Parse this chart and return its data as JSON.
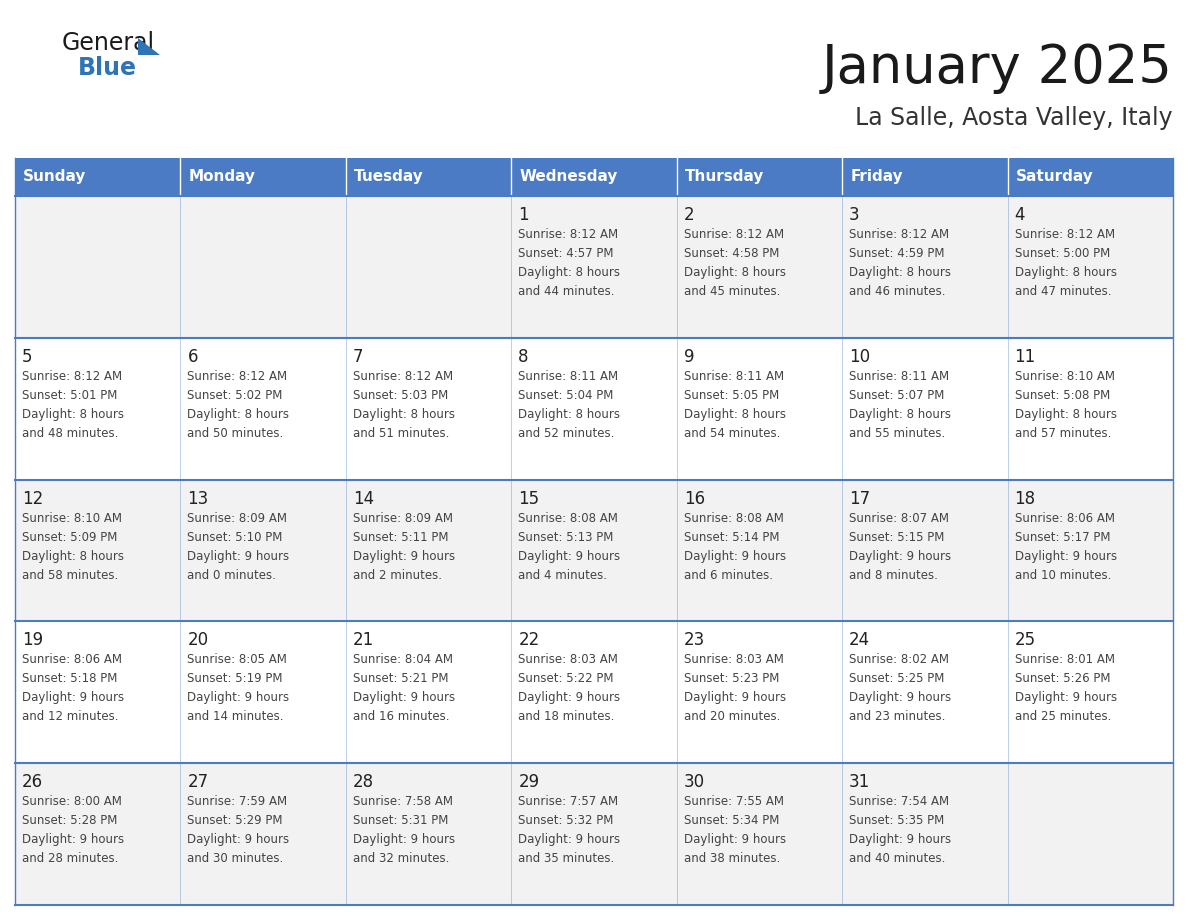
{
  "title": "January 2025",
  "subtitle": "La Salle, Aosta Valley, Italy",
  "header_bg": "#4A7BC4",
  "header_text_color": "#FFFFFF",
  "day_names": [
    "Sunday",
    "Monday",
    "Tuesday",
    "Wednesday",
    "Thursday",
    "Friday",
    "Saturday"
  ],
  "cell_bg_row0": "#F2F2F2",
  "cell_bg_row1": "#FFFFFF",
  "cell_border_color": "#4A7BC4",
  "cell_border_light": "#C8D8F0",
  "title_color": "#1a1a1a",
  "subtitle_color": "#333333",
  "text_color": "#444444",
  "daynum_color": "#222222",
  "logo_general_color": "#1a1a1a",
  "logo_blue_color": "#2E75B6",
  "days_data": [
    {
      "day": 1,
      "col": 3,
      "row": 0,
      "sunrise": "8:12 AM",
      "sunset": "4:57 PM",
      "daylight": "8 hours and 44 minutes"
    },
    {
      "day": 2,
      "col": 4,
      "row": 0,
      "sunrise": "8:12 AM",
      "sunset": "4:58 PM",
      "daylight": "8 hours and 45 minutes"
    },
    {
      "day": 3,
      "col": 5,
      "row": 0,
      "sunrise": "8:12 AM",
      "sunset": "4:59 PM",
      "daylight": "8 hours and 46 minutes"
    },
    {
      "day": 4,
      "col": 6,
      "row": 0,
      "sunrise": "8:12 AM",
      "sunset": "5:00 PM",
      "daylight": "8 hours and 47 minutes"
    },
    {
      "day": 5,
      "col": 0,
      "row": 1,
      "sunrise": "8:12 AM",
      "sunset": "5:01 PM",
      "daylight": "8 hours and 48 minutes"
    },
    {
      "day": 6,
      "col": 1,
      "row": 1,
      "sunrise": "8:12 AM",
      "sunset": "5:02 PM",
      "daylight": "8 hours and 50 minutes"
    },
    {
      "day": 7,
      "col": 2,
      "row": 1,
      "sunrise": "8:12 AM",
      "sunset": "5:03 PM",
      "daylight": "8 hours and 51 minutes"
    },
    {
      "day": 8,
      "col": 3,
      "row": 1,
      "sunrise": "8:11 AM",
      "sunset": "5:04 PM",
      "daylight": "8 hours and 52 minutes"
    },
    {
      "day": 9,
      "col": 4,
      "row": 1,
      "sunrise": "8:11 AM",
      "sunset": "5:05 PM",
      "daylight": "8 hours and 54 minutes"
    },
    {
      "day": 10,
      "col": 5,
      "row": 1,
      "sunrise": "8:11 AM",
      "sunset": "5:07 PM",
      "daylight": "8 hours and 55 minutes"
    },
    {
      "day": 11,
      "col": 6,
      "row": 1,
      "sunrise": "8:10 AM",
      "sunset": "5:08 PM",
      "daylight": "8 hours and 57 minutes"
    },
    {
      "day": 12,
      "col": 0,
      "row": 2,
      "sunrise": "8:10 AM",
      "sunset": "5:09 PM",
      "daylight": "8 hours and 58 minutes"
    },
    {
      "day": 13,
      "col": 1,
      "row": 2,
      "sunrise": "8:09 AM",
      "sunset": "5:10 PM",
      "daylight": "9 hours and 0 minutes"
    },
    {
      "day": 14,
      "col": 2,
      "row": 2,
      "sunrise": "8:09 AM",
      "sunset": "5:11 PM",
      "daylight": "9 hours and 2 minutes"
    },
    {
      "day": 15,
      "col": 3,
      "row": 2,
      "sunrise": "8:08 AM",
      "sunset": "5:13 PM",
      "daylight": "9 hours and 4 minutes"
    },
    {
      "day": 16,
      "col": 4,
      "row": 2,
      "sunrise": "8:08 AM",
      "sunset": "5:14 PM",
      "daylight": "9 hours and 6 minutes"
    },
    {
      "day": 17,
      "col": 5,
      "row": 2,
      "sunrise": "8:07 AM",
      "sunset": "5:15 PM",
      "daylight": "9 hours and 8 minutes"
    },
    {
      "day": 18,
      "col": 6,
      "row": 2,
      "sunrise": "8:06 AM",
      "sunset": "5:17 PM",
      "daylight": "9 hours and 10 minutes"
    },
    {
      "day": 19,
      "col": 0,
      "row": 3,
      "sunrise": "8:06 AM",
      "sunset": "5:18 PM",
      "daylight": "9 hours and 12 minutes"
    },
    {
      "day": 20,
      "col": 1,
      "row": 3,
      "sunrise": "8:05 AM",
      "sunset": "5:19 PM",
      "daylight": "9 hours and 14 minutes"
    },
    {
      "day": 21,
      "col": 2,
      "row": 3,
      "sunrise": "8:04 AM",
      "sunset": "5:21 PM",
      "daylight": "9 hours and 16 minutes"
    },
    {
      "day": 22,
      "col": 3,
      "row": 3,
      "sunrise": "8:03 AM",
      "sunset": "5:22 PM",
      "daylight": "9 hours and 18 minutes"
    },
    {
      "day": 23,
      "col": 4,
      "row": 3,
      "sunrise": "8:03 AM",
      "sunset": "5:23 PM",
      "daylight": "9 hours and 20 minutes"
    },
    {
      "day": 24,
      "col": 5,
      "row": 3,
      "sunrise": "8:02 AM",
      "sunset": "5:25 PM",
      "daylight": "9 hours and 23 minutes"
    },
    {
      "day": 25,
      "col": 6,
      "row": 3,
      "sunrise": "8:01 AM",
      "sunset": "5:26 PM",
      "daylight": "9 hours and 25 minutes"
    },
    {
      "day": 26,
      "col": 0,
      "row": 4,
      "sunrise": "8:00 AM",
      "sunset": "5:28 PM",
      "daylight": "9 hours and 28 minutes"
    },
    {
      "day": 27,
      "col": 1,
      "row": 4,
      "sunrise": "7:59 AM",
      "sunset": "5:29 PM",
      "daylight": "9 hours and 30 minutes"
    },
    {
      "day": 28,
      "col": 2,
      "row": 4,
      "sunrise": "7:58 AM",
      "sunset": "5:31 PM",
      "daylight": "9 hours and 32 minutes"
    },
    {
      "day": 29,
      "col": 3,
      "row": 4,
      "sunrise": "7:57 AM",
      "sunset": "5:32 PM",
      "daylight": "9 hours and 35 minutes"
    },
    {
      "day": 30,
      "col": 4,
      "row": 4,
      "sunrise": "7:55 AM",
      "sunset": "5:34 PM",
      "daylight": "9 hours and 38 minutes"
    },
    {
      "day": 31,
      "col": 5,
      "row": 4,
      "sunrise": "7:54 AM",
      "sunset": "5:35 PM",
      "daylight": "9 hours and 40 minutes"
    }
  ]
}
